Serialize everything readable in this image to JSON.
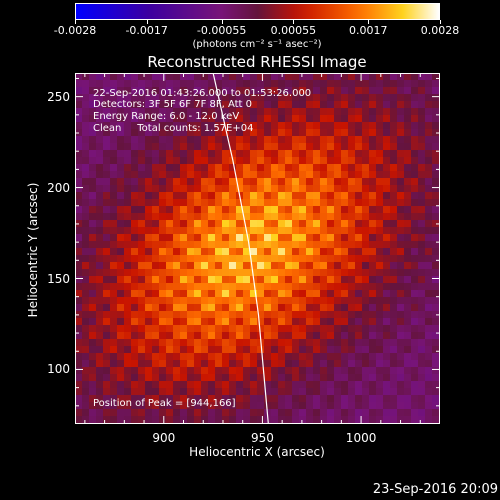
{
  "colorbar": {
    "tick_labels": [
      "-0.0028",
      "-0.0017",
      "-0.00055",
      "0.00055",
      "0.0017",
      "0.0028"
    ],
    "unit_label": "(photons cm⁻² s⁻¹ asec⁻²)",
    "range": [
      -0.0028,
      0.0028
    ]
  },
  "chart_data": {
    "type": "heatmap",
    "title": "Reconstructed RHESSI Image",
    "xlabel": "Heliocentric X (arcsec)",
    "ylabel": "Heliocentric Y (arcsec)",
    "xlim": [
      855,
      1040
    ],
    "ylim": [
      70,
      263
    ],
    "x_ticks": [
      900,
      950,
      1000
    ],
    "y_ticks": [
      100,
      150,
      200,
      250
    ],
    "peak": [
      944,
      166
    ],
    "limb_curve": [
      [
        925,
        263
      ],
      [
        935,
        215
      ],
      [
        943,
        170
      ],
      [
        948,
        130
      ],
      [
        953,
        70
      ]
    ],
    "annotations": {
      "line1": "22-Sep-2016 01:43:26.000 to 01:53:26.000",
      "line2": "Detectors: 3F 5F 6F 7F 8F, Att 0",
      "line3": "Energy Range: 6.0 - 12.0 keV",
      "line4": "Clean     Total counts: 1.57E+04",
      "peak_text": "Position of Peak = [944,166]"
    }
  },
  "footer": {
    "date": "23-Sep-2016 20:09"
  }
}
